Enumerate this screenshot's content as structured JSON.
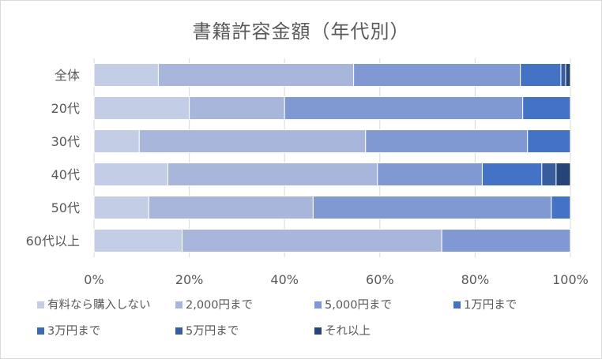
{
  "chart_data": {
    "type": "bar",
    "orientation": "horizontal",
    "stacked": "percent",
    "title": "書籍許容金額（年代別）",
    "categories": [
      "全体",
      "20代",
      "30代",
      "40代",
      "50代",
      "60代以上"
    ],
    "series": [
      {
        "name": "有料なら購入しない",
        "color": "#c3cde6",
        "values": [
          13.5,
          20.0,
          9.5,
          15.5,
          11.5,
          18.5
        ]
      },
      {
        "name": "2,000円まで",
        "color": "#a9b6dc",
        "values": [
          41.0,
          20.0,
          47.5,
          44.0,
          34.5,
          54.5
        ]
      },
      {
        "name": "5,000円まで",
        "color": "#8199d2",
        "values": [
          35.0,
          50.0,
          34.0,
          22.0,
          50.0,
          27.0
        ]
      },
      {
        "name": "1万円まで",
        "color": "#4472c4",
        "values": [
          8.5,
          10.0,
          9.0,
          12.5,
          4.0,
          0
        ]
      },
      {
        "name": "3万円まで",
        "color": "#3d68b5",
        "values": [
          0,
          0,
          0,
          0,
          0,
          0
        ]
      },
      {
        "name": "5万円まで",
        "color": "#385d9e",
        "values": [
          1.0,
          0,
          0,
          3.0,
          0,
          0
        ]
      },
      {
        "name": "それ以上",
        "color": "#264478",
        "values": [
          1.0,
          0,
          0,
          3.0,
          0,
          0
        ]
      }
    ],
    "xlim": [
      0,
      100
    ],
    "xticks": [
      "0%",
      "20%",
      "40%",
      "60%",
      "80%",
      "100%"
    ],
    "grid": true,
    "legend_position": "bottom"
  }
}
